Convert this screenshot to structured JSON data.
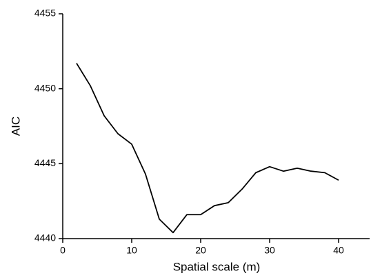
{
  "chart_data": {
    "type": "line",
    "x_label": "Spatial scale (m)",
    "y_label": "AIC",
    "x": [
      2,
      4,
      6,
      8,
      10,
      12,
      14,
      16,
      18,
      20,
      22,
      24,
      26,
      28,
      30,
      32,
      34,
      36,
      38,
      40
    ],
    "series": [
      {
        "color": "#000000",
        "values": [
          4451.7,
          4450.2,
          4448.2,
          4447.0,
          4446.3,
          4444.3,
          4441.3,
          4440.4,
          4441.6,
          4441.6,
          4442.2,
          4442.4,
          4443.3,
          4444.4,
          4444.8,
          4444.5,
          4444.7,
          4444.5,
          4444.4,
          4443.9
        ]
      }
    ],
    "xlim": [
      0,
      44.5
    ],
    "xticks": [
      0,
      10,
      20,
      30,
      40
    ],
    "ylim": [
      4440,
      4455
    ],
    "yticks": [
      4440,
      4445,
      4450,
      4455
    ],
    "grid": false
  }
}
